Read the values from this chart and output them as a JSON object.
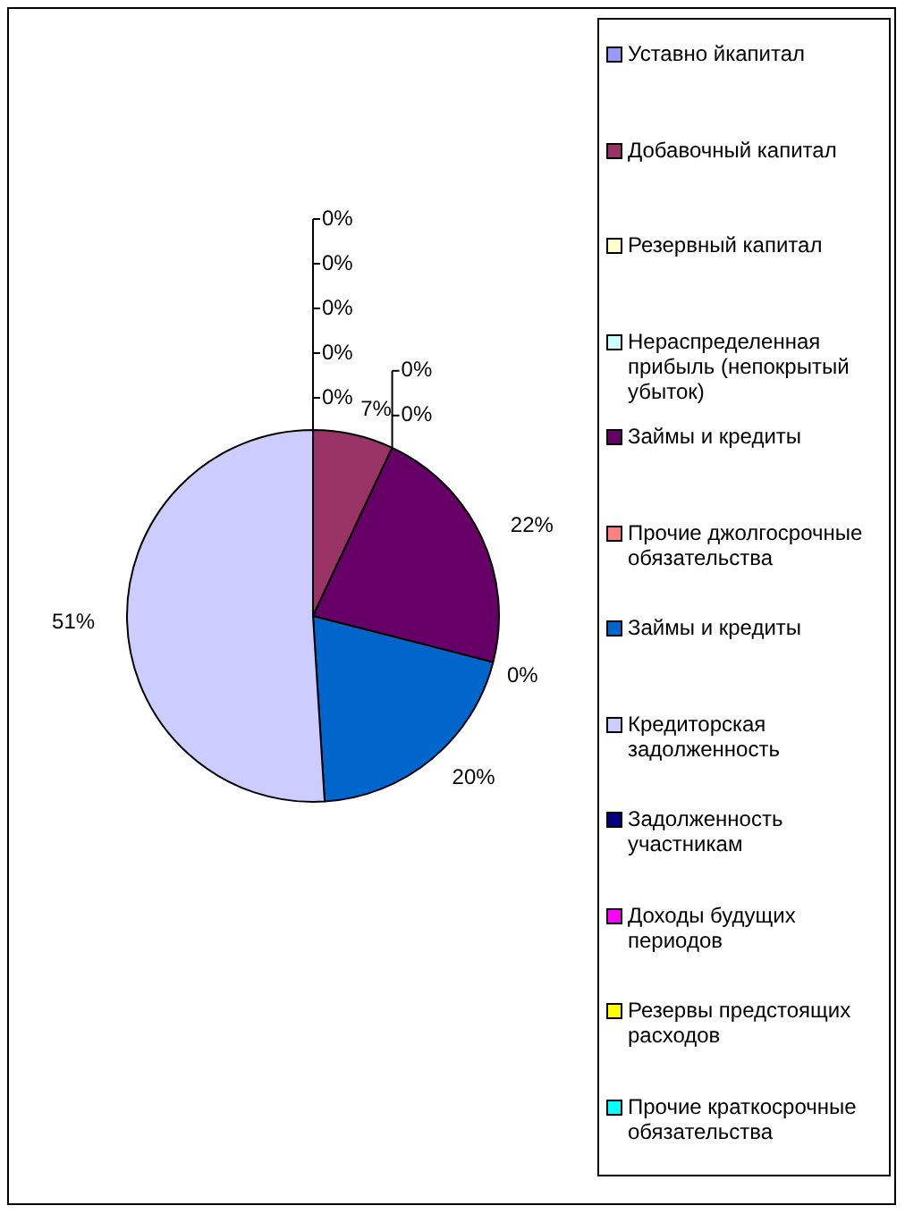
{
  "chart_data": {
    "type": "pie",
    "categories": [
      "Уставно йкапитал",
      "Добавочный капитал",
      "Резервный капитал",
      "Нераспределенная прибыль (непокрытый убыток)",
      "Займы и кредиты",
      "Прочие джолгосрочные обязательства",
      "Займы и кредиты",
      "Кредиторская задолженность",
      "Задолженность участникам",
      "Доходы будущих периодов",
      "Резервы предстоящих расходов",
      "Прочие краткосрочные обязательства"
    ],
    "values": [
      0,
      7,
      0,
      0,
      22,
      0,
      20,
      51,
      0,
      0,
      0,
      0
    ],
    "colors": [
      "#9999ff",
      "#993366",
      "#ffffcc",
      "#ccffff",
      "#660066",
      "#ff8080",
      "#0066cc",
      "#ccccff",
      "#000080",
      "#ff00ff",
      "#ffff00",
      "#00ffff"
    ],
    "value_labels": [
      "0%",
      "7%",
      "0%",
      "0%",
      "22%",
      "0%",
      "20%",
      "51%",
      "0%",
      "0%",
      "0%",
      "0%"
    ],
    "legend": "right"
  }
}
